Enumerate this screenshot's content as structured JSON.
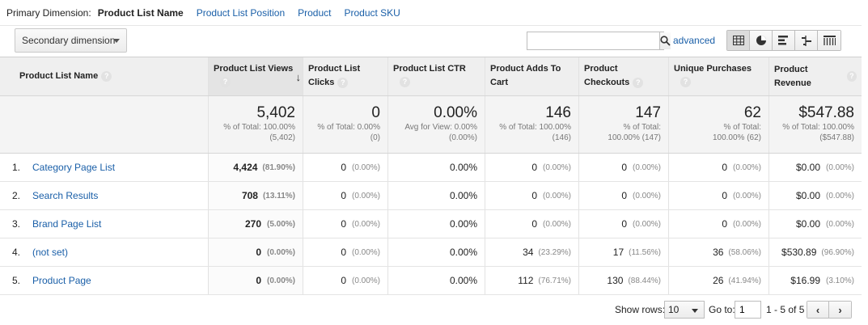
{
  "primary_dimension": {
    "label": "Primary Dimension:",
    "active": "Product List Name",
    "links": [
      "Product List Position",
      "Product",
      "Product SKU"
    ]
  },
  "toolbar": {
    "secondary_dimension": "Secondary dimension",
    "search_value": "",
    "advanced": "advanced",
    "view_icons": [
      "table-view-icon",
      "pie-view-icon",
      "bar-view-icon",
      "comparison-view-icon",
      "pivot-view-icon"
    ]
  },
  "columns": [
    "Product List Name",
    "Product List Views",
    "Product List Clicks",
    "Product List CTR",
    "Product Adds To Cart",
    "Product Checkouts",
    "Unique Purchases",
    "Product Revenue"
  ],
  "help_glyph": "?",
  "sort_glyph": "↓",
  "totals": [
    {
      "value": "5,402",
      "sub1": "% of Total: 100.00%",
      "sub2": "(5,402)"
    },
    {
      "value": "0",
      "sub1": "% of Total: 0.00%",
      "sub2": "(0)"
    },
    {
      "value": "0.00%",
      "sub1": "Avg for View: 0.00%",
      "sub2": "(0.00%)"
    },
    {
      "value": "146",
      "sub1": "% of Total: 100.00%",
      "sub2": "(146)"
    },
    {
      "value": "147",
      "sub1": "% of Total:",
      "sub2": "100.00% (147)"
    },
    {
      "value": "62",
      "sub1": "% of Total:",
      "sub2": "100.00% (62)"
    },
    {
      "value": "$547.88",
      "sub1": "% of Total: 100.00%",
      "sub2": "($547.88)"
    }
  ],
  "rows": [
    {
      "num": "1.",
      "name": "Category Page List",
      "views": "4,424",
      "views_pct": "(81.90%)",
      "clicks": "0",
      "clicks_pct": "(0.00%)",
      "ctr": "0.00%",
      "adds": "0",
      "adds_pct": "(0.00%)",
      "checkouts": "0",
      "checkouts_pct": "(0.00%)",
      "purchases": "0",
      "purchases_pct": "(0.00%)",
      "revenue": "$0.00",
      "revenue_pct": "(0.00%)"
    },
    {
      "num": "2.",
      "name": "Search Results",
      "views": "708",
      "views_pct": "(13.11%)",
      "clicks": "0",
      "clicks_pct": "(0.00%)",
      "ctr": "0.00%",
      "adds": "0",
      "adds_pct": "(0.00%)",
      "checkouts": "0",
      "checkouts_pct": "(0.00%)",
      "purchases": "0",
      "purchases_pct": "(0.00%)",
      "revenue": "$0.00",
      "revenue_pct": "(0.00%)"
    },
    {
      "num": "3.",
      "name": "Brand Page List",
      "views": "270",
      "views_pct": "(5.00%)",
      "clicks": "0",
      "clicks_pct": "(0.00%)",
      "ctr": "0.00%",
      "adds": "0",
      "adds_pct": "(0.00%)",
      "checkouts": "0",
      "checkouts_pct": "(0.00%)",
      "purchases": "0",
      "purchases_pct": "(0.00%)",
      "revenue": "$0.00",
      "revenue_pct": "(0.00%)"
    },
    {
      "num": "4.",
      "name": "(not set)",
      "views": "0",
      "views_pct": "(0.00%)",
      "clicks": "0",
      "clicks_pct": "(0.00%)",
      "ctr": "0.00%",
      "adds": "34",
      "adds_pct": "(23.29%)",
      "checkouts": "17",
      "checkouts_pct": "(11.56%)",
      "purchases": "36",
      "purchases_pct": "(58.06%)",
      "revenue": "$530.89",
      "revenue_pct": "(96.90%)"
    },
    {
      "num": "5.",
      "name": "Product Page",
      "views": "0",
      "views_pct": "(0.00%)",
      "clicks": "0",
      "clicks_pct": "(0.00%)",
      "ctr": "0.00%",
      "adds": "112",
      "adds_pct": "(76.71%)",
      "checkouts": "130",
      "checkouts_pct": "(88.44%)",
      "purchases": "26",
      "purchases_pct": "(41.94%)",
      "revenue": "$16.99",
      "revenue_pct": "(3.10%)"
    }
  ],
  "footer": {
    "show_rows_label": "Show rows:",
    "show_rows_value": "10",
    "goto_label": "Go to:",
    "goto_value": "1",
    "range": "1 - 5 of 5",
    "prev": "‹",
    "next": "›"
  },
  "colors": {
    "link": "#1a5fa8",
    "header_bg": "#efefef",
    "totals_bg": "#f4f4f4"
  }
}
